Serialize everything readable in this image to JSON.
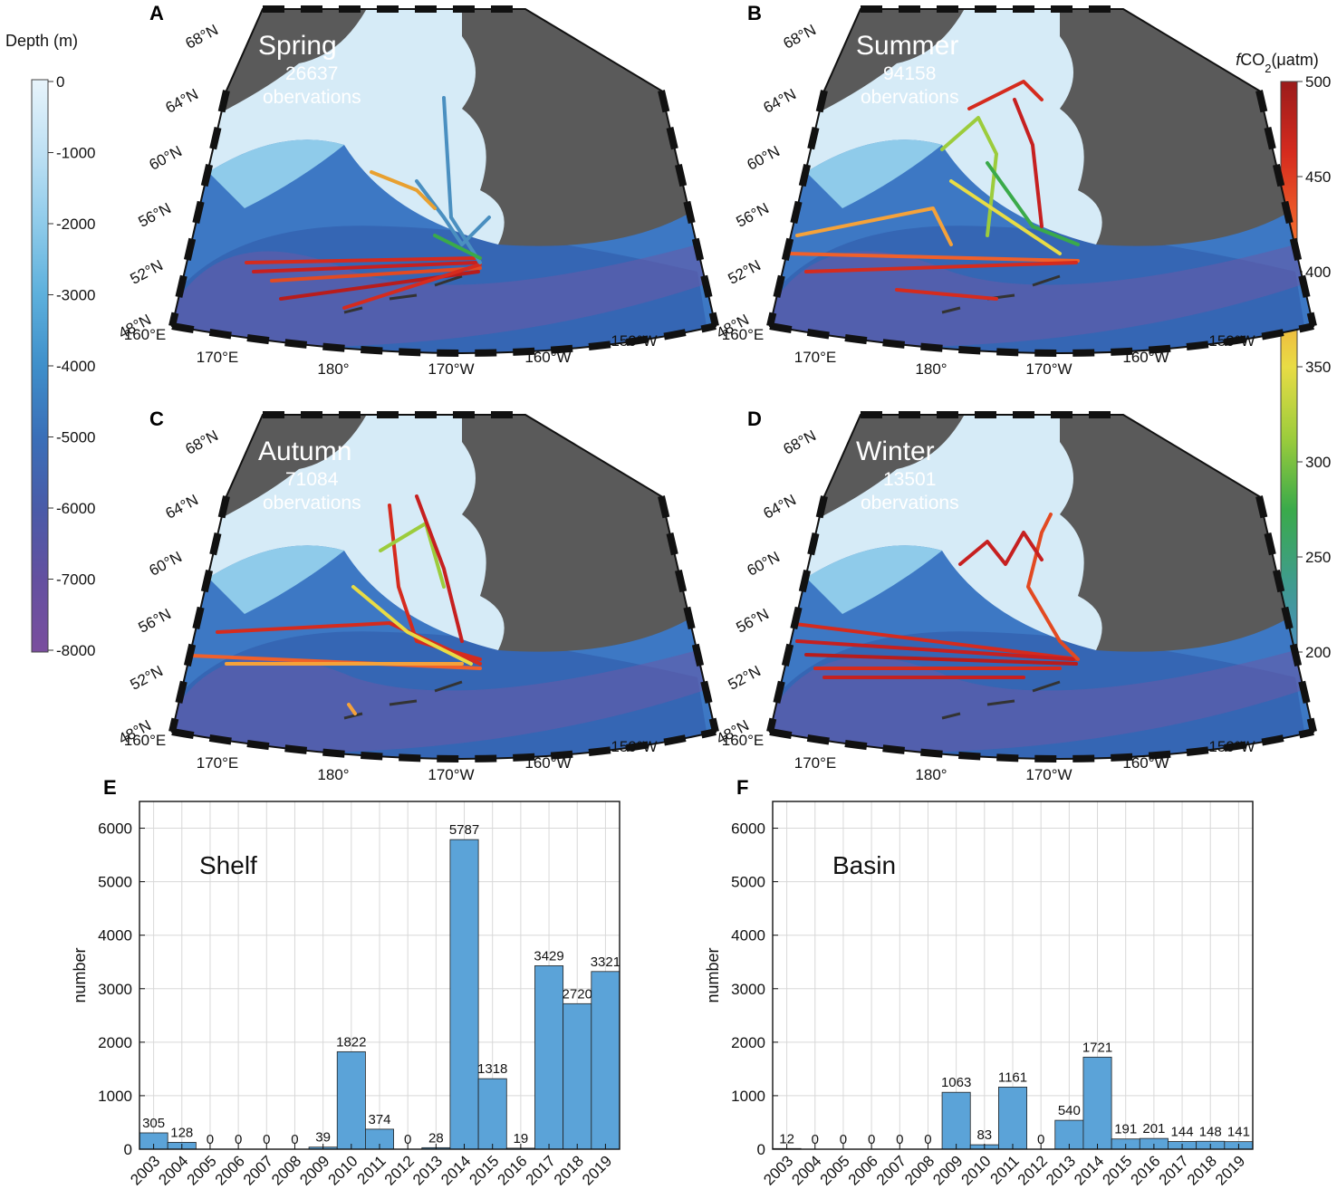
{
  "maps": {
    "depth_colorbar": {
      "title": "Depth (m)",
      "ticks": [
        "0",
        "-1000",
        "-2000",
        "-3000",
        "-4000",
        "-5000",
        "-6000",
        "-7000",
        "-8000"
      ],
      "colors": [
        "#e8f4fb",
        "#bfe1f4",
        "#8fcbea",
        "#5db0dc",
        "#3f8fca",
        "#3a6fb8",
        "#4a5ba8",
        "#6450a0",
        "#7a4e9e"
      ]
    },
    "fco2_colorbar": {
      "title_prefix": "f",
      "title_main": "CO",
      "title_sub": "2",
      "title_unit": "(μatm)",
      "ticks": [
        "500",
        "450",
        "400",
        "350",
        "300",
        "250",
        "200"
      ],
      "colors": [
        "#9b1b1b",
        "#d52b1e",
        "#f0602a",
        "#f5a23a",
        "#e8dc45",
        "#9ccc3c",
        "#3aaa4a",
        "#3f9c8c",
        "#4a8fc0"
      ]
    },
    "lat_labels": [
      "68°N",
      "64°N",
      "60°N",
      "56°N",
      "52°N",
      "48°N"
    ],
    "lon_labels": [
      "160°E",
      "170°E",
      "180°",
      "170°W",
      "160°W",
      "150°W"
    ],
    "panels": [
      {
        "letter": "A",
        "season": "Spring",
        "count": "26637",
        "unit": "obervations"
      },
      {
        "letter": "B",
        "season": "Summer",
        "count": "94158",
        "unit": "obervations"
      },
      {
        "letter": "C",
        "season": "Autumn",
        "count": "71084",
        "unit": "obervations"
      },
      {
        "letter": "D",
        "season": "Winter",
        "count": "13501",
        "unit": "obervations"
      }
    ],
    "colors": {
      "land": "#5a5a5a",
      "shelf": "#d6ebf7",
      "ocean": "#3d78c4",
      "trench": "#6a5aa8"
    }
  },
  "chart_data": [
    {
      "type": "bar",
      "panel_letter": "E",
      "annotation": "Shelf",
      "categories": [
        "2003",
        "2004",
        "2005",
        "2006",
        "2007",
        "2008",
        "2009",
        "2010",
        "2011",
        "2012",
        "2013",
        "2014",
        "2015",
        "2016",
        "2017",
        "2018",
        "2019"
      ],
      "values": [
        305,
        128,
        0,
        0,
        0,
        0,
        39,
        1822,
        374,
        0,
        28,
        5787,
        1318,
        19,
        3429,
        2720,
        3321
      ],
      "value_labels": [
        "305",
        "128",
        "0",
        "0",
        "0",
        "0",
        "39",
        "1822",
        "374",
        "0",
        "28",
        "5787",
        "1318",
        "19",
        "3429",
        "2720",
        "3321"
      ],
      "ylabel": "number",
      "ylim": [
        0,
        6500
      ],
      "yticks": [
        "0",
        "1000",
        "2000",
        "3000",
        "4000",
        "5000",
        "6000"
      ],
      "grid": true,
      "bar_color": "#5ba3d8"
    },
    {
      "type": "bar",
      "panel_letter": "F",
      "annotation": "Basin",
      "categories": [
        "2003",
        "2004",
        "2005",
        "2006",
        "2007",
        "2008",
        "2009",
        "2010",
        "2011",
        "2012",
        "2013",
        "2014",
        "2015",
        "2016",
        "2017",
        "2018",
        "2019"
      ],
      "values": [
        12,
        0,
        0,
        0,
        0,
        0,
        1063,
        83,
        1161,
        0,
        540,
        1721,
        191,
        201,
        144,
        148,
        141
      ],
      "value_labels": [
        "12",
        "0",
        "0",
        "0",
        "0",
        "0",
        "1063",
        "83",
        "1161",
        "0",
        "540",
        "1721",
        "191",
        "201",
        "144",
        "148",
        "141"
      ],
      "ylabel": "number",
      "ylim": [
        0,
        6500
      ],
      "yticks": [
        "0",
        "1000",
        "2000",
        "3000",
        "4000",
        "5000",
        "6000"
      ],
      "grid": true,
      "bar_color": "#5ba3d8"
    }
  ]
}
